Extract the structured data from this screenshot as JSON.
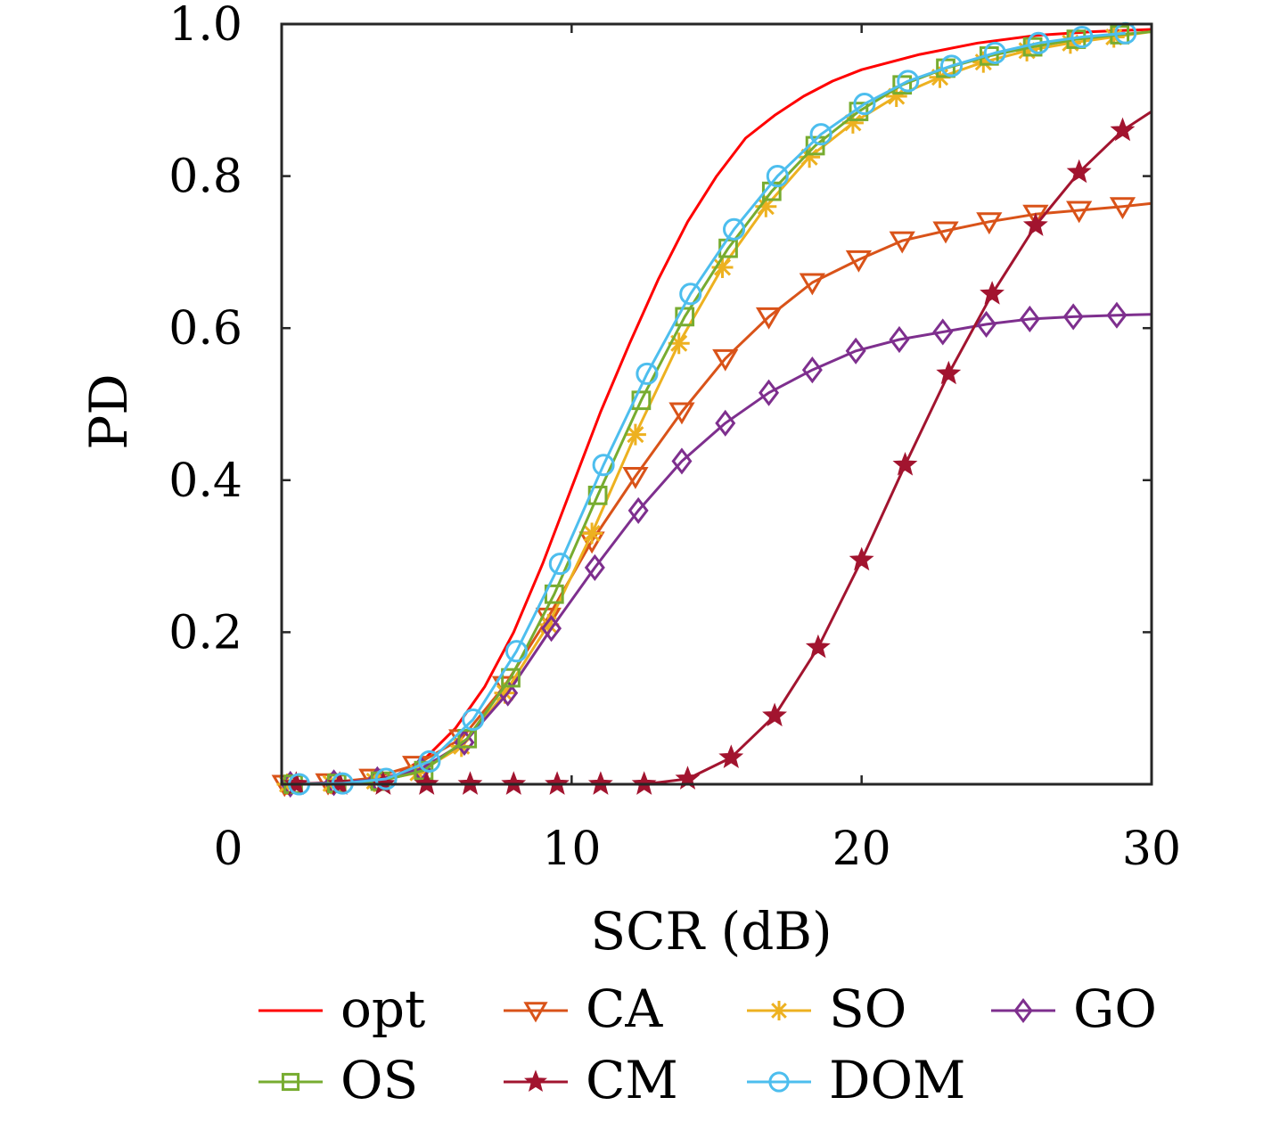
{
  "chart_data": {
    "type": "line",
    "xlabel": "SCR (dB)",
    "ylabel": "PD",
    "xlim": [
      0,
      30
    ],
    "ylim": [
      0,
      1.0
    ],
    "xticks": [
      0,
      10,
      20,
      30
    ],
    "xtick_labels": [
      "0",
      "10",
      "20",
      "30"
    ],
    "yticks": [
      0.2,
      0.4,
      0.6,
      0.8,
      1.0
    ],
    "ytick_labels": [
      "0.2",
      "0.4",
      "0.6",
      "0.8",
      "1.0"
    ],
    "grid": false,
    "legend_position": "bottom",
    "series": [
      {
        "name": "opt",
        "color": "#ff0000",
        "marker": "none",
        "x": [
          0,
          2,
          3,
          4,
          5,
          6,
          7,
          8,
          9,
          10,
          11,
          12,
          13,
          14,
          15,
          16,
          17,
          18,
          19,
          20,
          22,
          24,
          26,
          28,
          30
        ],
        "y": [
          0.0,
          0.001,
          0.004,
          0.013,
          0.036,
          0.074,
          0.128,
          0.2,
          0.29,
          0.39,
          0.49,
          0.58,
          0.665,
          0.74,
          0.8,
          0.85,
          0.88,
          0.905,
          0.925,
          0.94,
          0.96,
          0.975,
          0.985,
          0.99,
          0.993
        ]
      },
      {
        "name": "CA",
        "color": "#d95319",
        "marker": "triangle-down",
        "x": [
          0.1,
          1.6,
          3.1,
          4.6,
          6.2,
          7.7,
          9.2,
          10.7,
          12.2,
          13.8,
          15.3,
          16.8,
          18.3,
          19.9,
          21.4,
          22.9,
          24.4,
          26.0,
          27.5,
          29.0,
          30.0
        ],
        "y": [
          0.0,
          0.002,
          0.008,
          0.025,
          0.06,
          0.13,
          0.22,
          0.32,
          0.405,
          0.49,
          0.56,
          0.615,
          0.66,
          0.69,
          0.715,
          0.728,
          0.74,
          0.75,
          0.755,
          0.76,
          0.764
        ]
      },
      {
        "name": "SO",
        "color": "#edb120",
        "marker": "asterisk",
        "x": [
          0.2,
          1.7,
          3.2,
          4.7,
          6.2,
          7.7,
          9.2,
          10.7,
          12.2,
          13.7,
          15.2,
          16.7,
          18.2,
          19.7,
          21.2,
          22.7,
          24.2,
          25.7,
          27.2,
          28.7,
          30.0
        ],
        "y": [
          0.0,
          0.001,
          0.004,
          0.015,
          0.05,
          0.12,
          0.21,
          0.33,
          0.46,
          0.58,
          0.68,
          0.76,
          0.825,
          0.87,
          0.905,
          0.93,
          0.95,
          0.965,
          0.975,
          0.983,
          0.99
        ]
      },
      {
        "name": "GO",
        "color": "#7e2f8e",
        "marker": "diamond",
        "x": [
          0.3,
          1.8,
          3.3,
          4.8,
          6.3,
          7.8,
          9.3,
          10.8,
          12.3,
          13.8,
          15.3,
          16.8,
          18.3,
          19.8,
          21.3,
          22.8,
          24.3,
          25.8,
          27.3,
          28.8,
          30.0
        ],
        "y": [
          0.0,
          0.002,
          0.006,
          0.02,
          0.055,
          0.12,
          0.205,
          0.285,
          0.36,
          0.425,
          0.475,
          0.515,
          0.545,
          0.57,
          0.585,
          0.595,
          0.605,
          0.612,
          0.615,
          0.617,
          0.618
        ]
      },
      {
        "name": "OS",
        "color": "#77ac30",
        "marker": "square",
        "x": [
          0.4,
          1.9,
          3.4,
          4.9,
          6.4,
          7.9,
          9.4,
          10.9,
          12.4,
          13.9,
          15.4,
          16.9,
          18.4,
          19.9,
          21.4,
          22.9,
          24.4,
          25.9,
          27.4,
          28.9,
          30.0
        ],
        "y": [
          0.0,
          0.001,
          0.004,
          0.018,
          0.06,
          0.14,
          0.25,
          0.38,
          0.505,
          0.615,
          0.705,
          0.78,
          0.84,
          0.885,
          0.92,
          0.942,
          0.958,
          0.97,
          0.98,
          0.986,
          0.99
        ]
      },
      {
        "name": "CM",
        "color": "#a2142f",
        "marker": "star",
        "x": [
          0.5,
          2.0,
          3.5,
          5.0,
          6.5,
          8.0,
          9.5,
          11.0,
          12.5,
          14.0,
          15.5,
          17.0,
          18.5,
          20.0,
          21.5,
          23.0,
          24.5,
          26.0,
          27.5,
          29.0,
          30.0
        ],
        "y": [
          0.0,
          0.0,
          0.0,
          0.0,
          0.0,
          0.0,
          0.0,
          0.0,
          0.0,
          0.007,
          0.035,
          0.09,
          0.18,
          0.295,
          0.42,
          0.54,
          0.645,
          0.735,
          0.805,
          0.86,
          0.885
        ]
      },
      {
        "name": "DOM",
        "color": "#4dbeee",
        "marker": "circle",
        "x": [
          0.6,
          2.1,
          3.6,
          5.1,
          6.6,
          8.1,
          9.6,
          11.1,
          12.6,
          14.1,
          15.6,
          17.1,
          18.6,
          20.1,
          21.6,
          23.1,
          24.6,
          26.1,
          27.6,
          29.1
        ],
        "y": [
          0.0,
          0.001,
          0.007,
          0.03,
          0.085,
          0.175,
          0.29,
          0.42,
          0.54,
          0.645,
          0.73,
          0.8,
          0.855,
          0.895,
          0.925,
          0.945,
          0.962,
          0.975,
          0.983,
          0.988
        ]
      }
    ],
    "legend": {
      "rows": [
        [
          "opt",
          "CA",
          "SO",
          "GO"
        ],
        [
          "OS",
          "CM",
          "DOM"
        ]
      ]
    }
  }
}
